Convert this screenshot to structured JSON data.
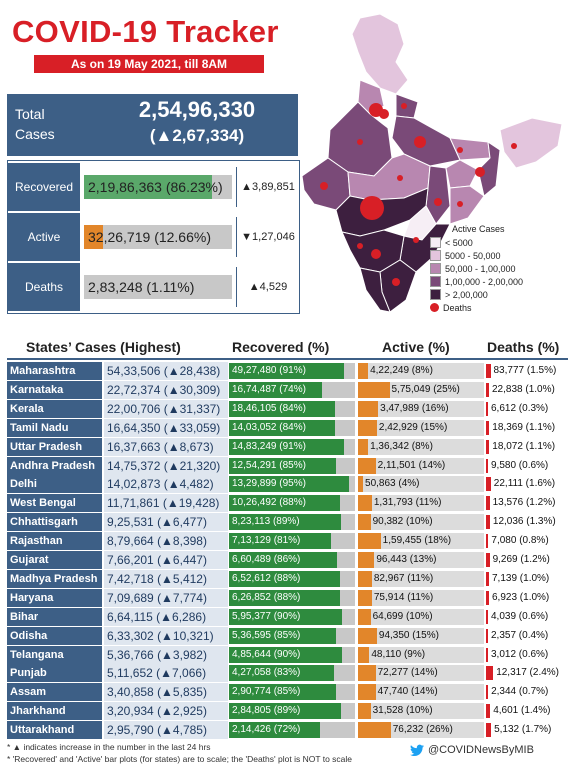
{
  "title": "COVID-19 Tracker",
  "date": "As on 19 May 2021, till 8AM",
  "totals": {
    "label_line1": "Total",
    "label_line2": "Cases",
    "total": "2,54,96,330",
    "delta": "(▲2,67,334)"
  },
  "summary": [
    {
      "label": "Recovered",
      "value": "2,19,86,363",
      "pct_text": "(86.23%)",
      "pct": 86.23,
      "delta": "▲3,89,851",
      "color": "#5aa86a"
    },
    {
      "label": "Active",
      "value": "32,26,719",
      "pct_text": "(12.66%)",
      "pct": 12.66,
      "delta": "▼1,27,046",
      "color": "#e2862a"
    },
    {
      "label": "Deaths",
      "value": "2,83,248",
      "pct_text": "(1.11%)",
      "pct": 1.11,
      "delta": "▲4,529",
      "color": "#c8c8c8"
    }
  ],
  "legend": {
    "title": "Active Cases",
    "items": [
      {
        "label": "< 5000",
        "color": "#f6eef5"
      },
      {
        "label": "5000 - 50,000",
        "color": "#e3c5dd"
      },
      {
        "label": "50,000 - 1,00,000",
        "color": "#b887b0"
      },
      {
        "label": "1,00,000 - 2,00,000",
        "color": "#7a4a78"
      },
      {
        "label": "> 2,00,000",
        "color": "#3d1f3f"
      }
    ],
    "deaths_label": "Deaths"
  },
  "table_headers": {
    "states": "States’ Cases (Highest)",
    "recovered": "Recovered (%)",
    "active": "Active (%)",
    "deaths": "Deaths (%)"
  },
  "chart_data": {
    "type": "table",
    "columns": [
      "State",
      "Cases",
      "Case increase",
      "Recovered",
      "Recovered %",
      "Active",
      "Active %",
      "Deaths",
      "Deaths %"
    ],
    "rows": [
      {
        "state": "Maharashtra",
        "cases": "54,33,506",
        "delta": "(▲28,438)",
        "recovered": "49,27,480",
        "rec_pct": 91,
        "active": "4,22,249",
        "act_pct": 8,
        "deaths": "83,777",
        "death_pct": "1.5%"
      },
      {
        "state": "Karnataka",
        "cases": "22,72,374",
        "delta": "(▲30,309)",
        "recovered": "16,74,487",
        "rec_pct": 74,
        "active": "5,75,049",
        "act_pct": 25,
        "deaths": "22,838",
        "death_pct": "1.0%"
      },
      {
        "state": "Kerala",
        "cases": "22,00,706",
        "delta": "(▲31,337)",
        "recovered": "18,46,105",
        "rec_pct": 84,
        "active": "3,47,989",
        "act_pct": 16,
        "deaths": "6,612",
        "death_pct": "0.3%"
      },
      {
        "state": "Tamil Nadu",
        "cases": "16,64,350",
        "delta": "(▲33,059)",
        "recovered": "14,03,052",
        "rec_pct": 84,
        "active": "2,42,929",
        "act_pct": 15,
        "deaths": "18,369",
        "death_pct": "1.1%"
      },
      {
        "state": "Uttar Pradesh",
        "cases": "16,37,663",
        "delta": "(▲8,673)",
        "recovered": "14,83,249",
        "rec_pct": 91,
        "active": "1,36,342",
        "act_pct": 8,
        "deaths": "18,072",
        "death_pct": "1.1%"
      },
      {
        "state": "Andhra Pradesh",
        "cases": "14,75,372",
        "delta": "(▲21,320)",
        "recovered": "12,54,291",
        "rec_pct": 85,
        "active": "2,11,501",
        "act_pct": 14,
        "deaths": "9,580",
        "death_pct": "0.6%"
      },
      {
        "state": "Delhi",
        "cases": "14,02,873",
        "delta": "(▲4,482)",
        "recovered": "13,29,899",
        "rec_pct": 95,
        "active": "50,863",
        "act_pct": 4,
        "deaths": "22,111",
        "death_pct": "1.6%"
      },
      {
        "state": "West Bengal",
        "cases": "11,71,861",
        "delta": "(▲19,428)",
        "recovered": "10,26,492",
        "rec_pct": 88,
        "active": "1,31,793",
        "act_pct": 11,
        "deaths": "13,576",
        "death_pct": "1.2%"
      },
      {
        "state": "Chhattisgarh",
        "cases": "9,25,531",
        "delta": "(▲6,477)",
        "recovered": "8,23,113",
        "rec_pct": 89,
        "active": "90,382",
        "act_pct": 10,
        "deaths": "12,036",
        "death_pct": "1.3%"
      },
      {
        "state": "Rajasthan",
        "cases": "8,79,664",
        "delta": "(▲8,398)",
        "recovered": "7,13,129",
        "rec_pct": 81,
        "active": "1,59,455",
        "act_pct": 18,
        "deaths": "7,080",
        "death_pct": "0.8%"
      },
      {
        "state": "Gujarat",
        "cases": "7,66,201",
        "delta": "(▲6,447)",
        "recovered": "6,60,489",
        "rec_pct": 86,
        "active": "96,443",
        "act_pct": 13,
        "deaths": "9,269",
        "death_pct": "1.2%"
      },
      {
        "state": "Madhya Pradesh",
        "cases": "7,42,718",
        "delta": "(▲5,412)",
        "recovered": "6,52,612",
        "rec_pct": 88,
        "active": "82,967",
        "act_pct": 11,
        "deaths": "7,139",
        "death_pct": "1.0%"
      },
      {
        "state": "Haryana",
        "cases": "7,09,689",
        "delta": "(▲7,774)",
        "recovered": "6,26,852",
        "rec_pct": 88,
        "active": "75,914",
        "act_pct": 11,
        "deaths": "6,923",
        "death_pct": "1.0%"
      },
      {
        "state": "Bihar",
        "cases": "6,64,115",
        "delta": "(▲6,286)",
        "recovered": "5,95,377",
        "rec_pct": 90,
        "active": "64,699",
        "act_pct": 10,
        "deaths": "4,039",
        "death_pct": "0.6%"
      },
      {
        "state": "Odisha",
        "cases": "6,33,302",
        "delta": "(▲10,321)",
        "recovered": "5,36,595",
        "rec_pct": 85,
        "active": "94,350",
        "act_pct": 15,
        "deaths": "2,357",
        "death_pct": "0.4%"
      },
      {
        "state": "Telangana",
        "cases": "5,36,766",
        "delta": "(▲3,982)",
        "recovered": "4,85,644",
        "rec_pct": 90,
        "active": "48,110",
        "act_pct": 9,
        "deaths": "3,012",
        "death_pct": "0.6%"
      },
      {
        "state": "Punjab",
        "cases": "5,11,652",
        "delta": "(▲7,066)",
        "recovered": "4,27,058",
        "rec_pct": 83,
        "active": "72,277",
        "act_pct": 14,
        "deaths": "12,317",
        "death_pct": "2.4%"
      },
      {
        "state": "Assam",
        "cases": "3,40,858",
        "delta": "(▲5,835)",
        "recovered": "2,90,774",
        "rec_pct": 85,
        "active": "47,740",
        "act_pct": 14,
        "deaths": "2,344",
        "death_pct": "0.7%"
      },
      {
        "state": "Jharkhand",
        "cases": "3,20,934",
        "delta": "(▲2,925)",
        "recovered": "2,84,805",
        "rec_pct": 89,
        "active": "31,528",
        "act_pct": 10,
        "deaths": "4,601",
        "death_pct": "1.4%"
      },
      {
        "state": "Uttarakhand",
        "cases": "2,95,790",
        "delta": "(▲4,785)",
        "recovered": "2,14,426",
        "rec_pct": 72,
        "active": "76,232",
        "act_pct": 26,
        "deaths": "5,132",
        "death_pct": "1.7%"
      }
    ]
  },
  "footnotes": [
    "* ▲ indicates increase in the number in the last 24 hrs",
    "* 'Recovered' and 'Active' bar plots (for states) are to scale; the 'Deaths' plot is NOT to scale"
  ],
  "handle": "@COVIDNewsByMIB",
  "colors": {
    "accent": "#d81f26",
    "navy": "#3d5f86",
    "recovered": "#2e8b3e",
    "active": "#e2862a",
    "deaths": "#d81f26"
  }
}
